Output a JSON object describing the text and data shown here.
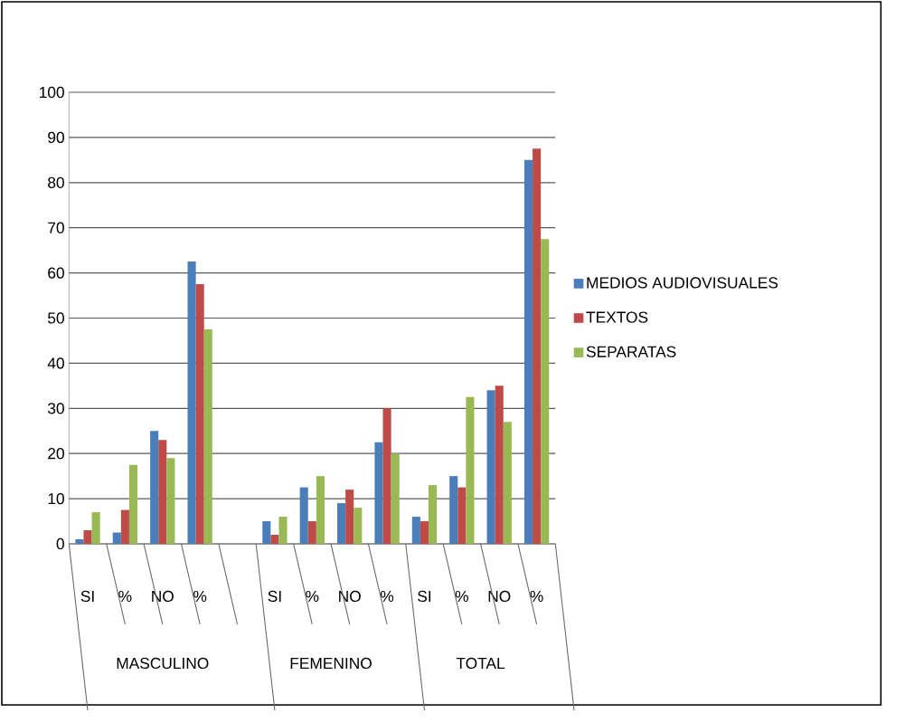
{
  "chart_data": {
    "type": "bar",
    "categories": [
      "SI",
      "%",
      "NO",
      "%",
      null,
      "SI",
      "%",
      "NO",
      "%",
      "SI",
      "%",
      "NO",
      "%"
    ],
    "series": [
      {
        "name": "MEDIOS AUDIOVISUALES",
        "color": "#4a7ebb",
        "values": [
          1,
          2.5,
          25,
          62.5,
          null,
          5,
          12.5,
          9,
          22.5,
          6,
          15,
          34,
          85
        ]
      },
      {
        "name": "TEXTOS",
        "color": "#be4b48",
        "values": [
          3,
          7.5,
          23,
          57.5,
          null,
          2,
          5,
          12,
          30,
          5,
          12.5,
          35,
          87.5
        ]
      },
      {
        "name": "SEPARATAS",
        "color": "#98b954",
        "values": [
          7,
          17.5,
          19,
          47.5,
          null,
          6,
          15,
          8,
          20,
          13,
          32.5,
          27,
          67.5
        ]
      }
    ],
    "annotations": [
      "MASCULINO",
      "FEMENINO",
      "TOTAL"
    ],
    "ylim": [
      0,
      100
    ],
    "yticks": [
      0,
      10,
      20,
      30,
      40,
      50,
      60,
      70,
      80,
      90,
      100
    ],
    "grid": "y",
    "legend": "right"
  }
}
